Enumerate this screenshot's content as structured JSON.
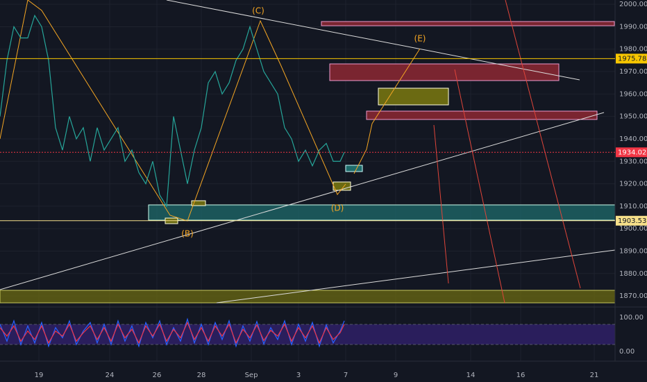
{
  "chart_data": {
    "type": "line",
    "x": [
      0,
      5,
      10,
      15,
      20,
      25,
      30,
      35,
      40,
      45,
      50,
      55,
      60,
      65,
      70,
      75,
      80,
      85,
      90,
      95,
      100,
      105,
      110,
      115,
      120,
      125,
      130,
      135,
      140,
      145,
      150,
      155,
      160,
      165,
      170,
      175,
      180,
      185,
      190,
      195,
      200,
      205,
      210,
      215,
      220,
      225,
      230,
      235,
      240,
      245,
      248
    ],
    "series": [
      {
        "color": "#26a69a",
        "values": [
          1950,
          1975,
          1990,
          1985,
          1985,
          1995,
          1990,
          1975,
          1945,
          1935,
          1950,
          1940,
          1945,
          1930,
          1945,
          1935,
          1940,
          1945,
          1930,
          1935,
          1925,
          1920,
          1930,
          1915,
          1910,
          1950,
          1935,
          1920,
          1935,
          1945,
          1965,
          1970,
          1960,
          1965,
          1975,
          1980,
          1990,
          1980,
          1970,
          1965,
          1960,
          1945,
          1940,
          1930,
          1935,
          1928,
          1935,
          1938,
          1930,
          1930,
          1934.024
        ]
      }
    ],
    "oscillator": {
      "series": [
        {
          "color": "#2962ff",
          "values": [
            80,
            30,
            90,
            20,
            75,
            25,
            85,
            15,
            70,
            40,
            90,
            20,
            60,
            85,
            25,
            80,
            20,
            90,
            30,
            75,
            15,
            85,
            40,
            90,
            20,
            70,
            30,
            95,
            25,
            80,
            20,
            85,
            35,
            90,
            15,
            75,
            30,
            88,
            22,
            70,
            35,
            90,
            20,
            80,
            30,
            85,
            15,
            78,
            25,
            60,
            90
          ]
        },
        {
          "color": "#f23645",
          "values": [
            70,
            45,
            75,
            30,
            60,
            35,
            75,
            25,
            60,
            45,
            80,
            30,
            55,
            75,
            35,
            70,
            30,
            80,
            40,
            65,
            25,
            75,
            45,
            80,
            30,
            65,
            40,
            85,
            35,
            70,
            30,
            75,
            45,
            80,
            25,
            65,
            40,
            78,
            32,
            62,
            45,
            80,
            30,
            70,
            40,
            75,
            25,
            70,
            35,
            55,
            80
          ]
        }
      ],
      "ylim": [
        -28.6,
        126.5
      ],
      "yticks": [
        {
          "value": 100,
          "label": "100.00"
        },
        {
          "value": 0,
          "label": "0.00"
        }
      ]
    },
    "xlim": [
      0,
      443
    ],
    "xticks": [
      {
        "value": 28,
        "label": "19"
      },
      {
        "value": 79,
        "label": "24"
      },
      {
        "value": 113,
        "label": "26"
      },
      {
        "value": 145,
        "label": "28"
      },
      {
        "value": 181,
        "label": "Sep"
      },
      {
        "value": 215,
        "label": "3"
      },
      {
        "value": 249,
        "label": "7"
      },
      {
        "value": 285,
        "label": "9"
      },
      {
        "value": 339,
        "label": "14"
      },
      {
        "value": 375,
        "label": "16"
      },
      {
        "value": 428,
        "label": "21"
      }
    ],
    "ylim": [
      1865.7,
      2001.9
    ],
    "yticks": [
      {
        "value": 2000,
        "label": "2000.000"
      },
      {
        "value": 1990,
        "label": "1990.000"
      },
      {
        "value": 1980,
        "label": "1980.000"
      },
      {
        "value": 1970,
        "label": "1970.000"
      },
      {
        "value": 1960,
        "label": "1960.000"
      },
      {
        "value": 1950,
        "label": "1950.000"
      },
      {
        "value": 1940,
        "label": "1940.000"
      },
      {
        "value": 1930,
        "label": "1930.000"
      },
      {
        "value": 1920,
        "label": "1920.000"
      },
      {
        "value": 1910,
        "label": "1910.000"
      },
      {
        "value": 1900,
        "label": "1900.000"
      },
      {
        "value": 1890,
        "label": "1890.000"
      },
      {
        "value": 1880,
        "label": "1880.000"
      },
      {
        "value": 1870,
        "label": "1870.000"
      }
    ],
    "grid": true,
    "price_lines": [
      {
        "value": 1975.781,
        "color": "#f7c600"
      },
      {
        "value": 1934.024,
        "color": "#f23645"
      },
      {
        "value": 1903.533,
        "color": "#f7e08a"
      }
    ],
    "annotations": [
      "(C)",
      "(E)",
      "(B)",
      "(D)"
    ]
  }
}
